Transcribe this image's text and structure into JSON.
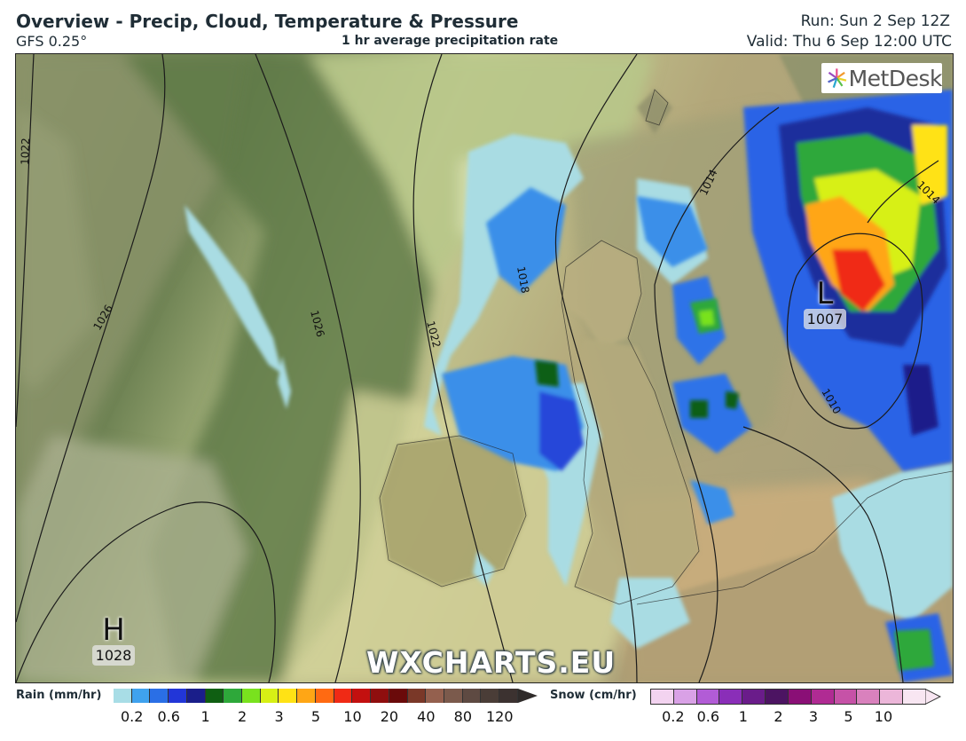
{
  "header": {
    "title": "Overview - Precip, Cloud, Temperature & Pressure",
    "model": "GFS 0.25°",
    "subtitle": "1 hr average precipitation rate",
    "run": "Run: Sun 2 Sep 12Z",
    "valid": "Valid: Thu 6 Sep 12:00 UTC"
  },
  "map": {
    "logo": "MetDesk",
    "watermark": "WXCHARTS.EU",
    "pressure_centres": [
      {
        "type": "H",
        "value": "1028"
      },
      {
        "type": "L",
        "value": "1007"
      }
    ],
    "isobar_labels": [
      "1022",
      "1026",
      "1026",
      "1022",
      "1018",
      "1014",
      "1010",
      "1014"
    ]
  },
  "legend": {
    "rain": {
      "title": "Rain (mm/hr)",
      "ticks": [
        "0.2",
        "0.6",
        "1",
        "2",
        "3",
        "5",
        "10",
        "20",
        "40",
        "80",
        "120"
      ],
      "colors": [
        "#a8dde6",
        "#3fa2ee",
        "#2a6fe6",
        "#2236d8",
        "#1a1e8a",
        "#0f5f12",
        "#2ea83a",
        "#79e21e",
        "#d7f015",
        "#ffe215",
        "#ffa615",
        "#ff6a12",
        "#f02a15",
        "#c3100f",
        "#8f0e0e",
        "#6a0a0a",
        "#7a3828",
        "#94604e",
        "#7b5a4c",
        "#5e4a42",
        "#4a3d37",
        "#3c3230"
      ]
    },
    "snow": {
      "title": "Snow (cm/hr)",
      "ticks": [
        "0.2",
        "0.6",
        "1",
        "2",
        "3",
        "5",
        "10"
      ],
      "colors": [
        "#f3d3f0",
        "#d9a1e6",
        "#b25cd6",
        "#8a2eb8",
        "#6a1c8a",
        "#4c1462",
        "#8a0f76",
        "#b02b93",
        "#c652a7",
        "#d981bd",
        "#ecb6d9",
        "#f8e6f2"
      ]
    }
  }
}
